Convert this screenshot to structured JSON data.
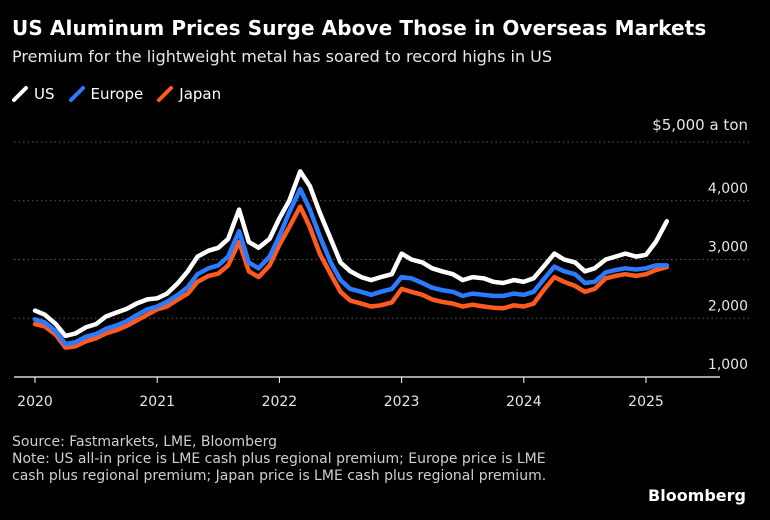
{
  "header": {
    "title": "US Aluminum Prices Surge Above Those in Overseas Markets",
    "subtitle": "Premium for the lightweight metal has soared to record highs in US"
  },
  "footer": {
    "source": "Source: Fastmarkets, LME, Bloomberg",
    "note": "Note: US all-in price is LME cash plus regional premium; Europe price is LME cash plus regional premium; Japan price is LME cash plus regional premium.",
    "brand": "Bloomberg"
  },
  "chart_data": {
    "type": "line",
    "title": "US Aluminum Prices Surge Above Those in Overseas Markets",
    "subtitle": "Premium for the lightweight metal has soared to record highs in US",
    "unit_label": "$5,000 a ton",
    "ylim": [
      1000,
      5000
    ],
    "yticks": [
      1000,
      2000,
      3000,
      4000,
      5000
    ],
    "ytick_labels": [
      "1,000",
      "2,000",
      "3,000",
      "4,000",
      "$5,000 a ton"
    ],
    "xlim": [
      2020.0,
      2025.55
    ],
    "xticks": [
      2020,
      2021,
      2022,
      2023,
      2024,
      2025
    ],
    "xtick_labels": [
      "2020",
      "2021",
      "2022",
      "2023",
      "2024",
      "2025"
    ],
    "grid": "horizontal dotted",
    "legend_position": "top-left",
    "x": [
      2020.0,
      2020.08,
      2020.17,
      2020.25,
      2020.33,
      2020.42,
      2020.5,
      2020.58,
      2020.67,
      2020.75,
      2020.83,
      2020.92,
      2021.0,
      2021.08,
      2021.17,
      2021.25,
      2021.33,
      2021.42,
      2021.5,
      2021.58,
      2021.67,
      2021.75,
      2021.83,
      2021.92,
      2022.0,
      2022.08,
      2022.17,
      2022.25,
      2022.33,
      2022.42,
      2022.5,
      2022.58,
      2022.67,
      2022.75,
      2022.83,
      2022.92,
      2023.0,
      2023.08,
      2023.17,
      2023.25,
      2023.33,
      2023.42,
      2023.5,
      2023.58,
      2023.67,
      2023.75,
      2023.83,
      2023.92,
      2024.0,
      2024.08,
      2024.17,
      2024.25,
      2024.33,
      2024.42,
      2024.5,
      2024.58,
      2024.67,
      2024.75,
      2024.83,
      2024.92,
      2025.0,
      2025.08,
      2025.17
    ],
    "series": [
      {
        "name": "US",
        "color": "#ffffff",
        "values": [
          2130,
          2060,
          1900,
          1700,
          1740,
          1850,
          1900,
          2030,
          2100,
          2160,
          2250,
          2320,
          2340,
          2420,
          2600,
          2800,
          3050,
          3150,
          3200,
          3350,
          3850,
          3300,
          3200,
          3350,
          3700,
          4000,
          4500,
          4250,
          3800,
          3350,
          2950,
          2800,
          2700,
          2650,
          2700,
          2750,
          3100,
          3000,
          2950,
          2850,
          2800,
          2750,
          2650,
          2700,
          2680,
          2620,
          2600,
          2650,
          2620,
          2680,
          2900,
          3100,
          3000,
          2950,
          2800,
          2850,
          3000,
          3050,
          3100,
          3050,
          3080,
          3300,
          3650
        ]
      },
      {
        "name": "Europe",
        "color": "#2b7bff",
        "values": [
          1980,
          1930,
          1780,
          1560,
          1590,
          1690,
          1730,
          1820,
          1880,
          1950,
          2050,
          2150,
          2200,
          2280,
          2400,
          2530,
          2750,
          2850,
          2900,
          3050,
          3480,
          2950,
          2850,
          3050,
          3400,
          3800,
          4200,
          3850,
          3400,
          2950,
          2650,
          2500,
          2450,
          2400,
          2450,
          2500,
          2700,
          2680,
          2600,
          2520,
          2480,
          2450,
          2380,
          2420,
          2400,
          2380,
          2380,
          2420,
          2400,
          2450,
          2680,
          2880,
          2800,
          2750,
          2600,
          2620,
          2780,
          2820,
          2850,
          2830,
          2850,
          2900,
          2900
        ]
      },
      {
        "name": "Japan",
        "color": "#ff5a1f",
        "values": [
          1900,
          1860,
          1720,
          1500,
          1520,
          1610,
          1660,
          1740,
          1800,
          1870,
          1960,
          2060,
          2150,
          2200,
          2320,
          2420,
          2620,
          2720,
          2760,
          2900,
          3300,
          2800,
          2700,
          2900,
          3250,
          3550,
          3900,
          3550,
          3100,
          2750,
          2450,
          2300,
          2250,
          2200,
          2220,
          2270,
          2500,
          2450,
          2400,
          2320,
          2280,
          2250,
          2200,
          2230,
          2200,
          2180,
          2170,
          2220,
          2200,
          2250,
          2500,
          2700,
          2620,
          2550,
          2450,
          2500,
          2680,
          2720,
          2750,
          2720,
          2750,
          2820,
          2870
        ]
      }
    ]
  }
}
